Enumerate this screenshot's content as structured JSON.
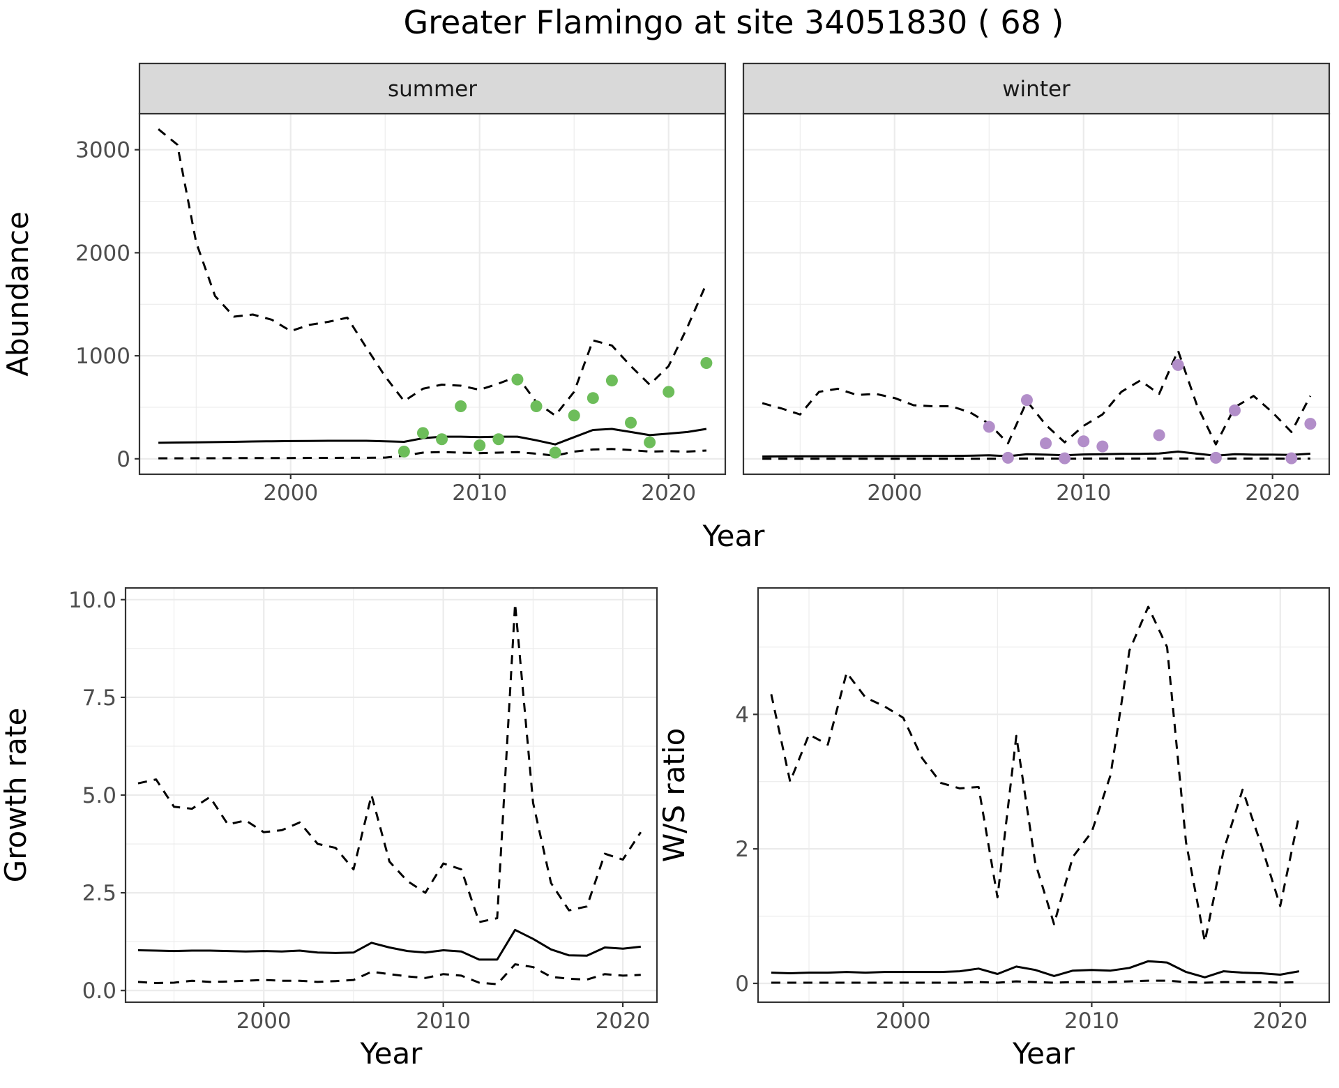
{
  "title": "Greater Flamingo at site 34051830 ( 68 )",
  "colors": {
    "summer_points": "#6dbd5a",
    "winter_points": "#b28ec9",
    "lines": "#000000",
    "strip_fill": "#d9d9d9",
    "grid": "#ebebeb"
  },
  "chart_data": [
    {
      "type": "line",
      "panel": "summer",
      "strip": "summer",
      "xlabel": "Year",
      "ylabel": "Abundance",
      "xlim": [
        1992,
        2023
      ],
      "ylim": [
        -150,
        3350
      ],
      "x_ticks": [
        2000,
        2010,
        2020
      ],
      "y_ticks": [
        0,
        1000,
        2000,
        3000
      ],
      "grid": true,
      "series": [
        {
          "role": "upper",
          "style": "dashed",
          "x": [
            1993,
            1994,
            1995,
            1996,
            1997,
            1998,
            1999,
            2000,
            2001,
            2002,
            2003,
            2004,
            2005,
            2006,
            2007,
            2008,
            2009,
            2010,
            2011,
            2012,
            2013,
            2014,
            2015,
            2016,
            2017,
            2018,
            2019,
            2020,
            2021,
            2022
          ],
          "y": [
            3200,
            3050,
            2100,
            1580,
            1380,
            1400,
            1350,
            1240,
            1300,
            1330,
            1370,
            1080,
            800,
            560,
            680,
            720,
            710,
            670,
            730,
            800,
            550,
            420,
            650,
            1150,
            1100,
            900,
            720,
            900,
            1280,
            1700
          ]
        },
        {
          "role": "central",
          "style": "solid",
          "x": [
            1993,
            1994,
            1995,
            1996,
            1997,
            1998,
            1999,
            2000,
            2001,
            2002,
            2003,
            2004,
            2005,
            2006,
            2007,
            2008,
            2009,
            2010,
            2011,
            2012,
            2013,
            2014,
            2015,
            2016,
            2017,
            2018,
            2019,
            2020,
            2021,
            2022
          ],
          "y": [
            155,
            158,
            160,
            162,
            165,
            168,
            170,
            172,
            173,
            175,
            175,
            175,
            170,
            165,
            200,
            215,
            215,
            210,
            215,
            215,
            180,
            140,
            210,
            280,
            290,
            260,
            230,
            245,
            260,
            290
          ]
        },
        {
          "role": "lower",
          "style": "dashed",
          "x": [
            1993,
            1994,
            1995,
            1996,
            1997,
            1998,
            1999,
            2000,
            2001,
            2002,
            2003,
            2004,
            2005,
            2006,
            2007,
            2008,
            2009,
            2010,
            2011,
            2012,
            2013,
            2014,
            2015,
            2016,
            2017,
            2018,
            2019,
            2020,
            2021,
            2022
          ],
          "y": [
            5,
            5,
            6,
            6,
            7,
            7,
            8,
            8,
            9,
            9,
            10,
            10,
            12,
            30,
            60,
            65,
            60,
            55,
            60,
            65,
            50,
            30,
            70,
            90,
            95,
            85,
            70,
            75,
            70,
            80
          ]
        },
        {
          "role": "observed",
          "style": "points",
          "x": [
            2006,
            2007,
            2008,
            2009,
            2010,
            2011,
            2012,
            2013,
            2014,
            2015,
            2016,
            2017,
            2018,
            2019,
            2020,
            2022
          ],
          "y": [
            70,
            250,
            190,
            510,
            130,
            190,
            770,
            510,
            60,
            420,
            590,
            760,
            350,
            160,
            650,
            930
          ]
        }
      ]
    },
    {
      "type": "line",
      "panel": "winter",
      "strip": "winter",
      "xlabel": "Year",
      "ylabel": "Abundance",
      "xlim": [
        1992,
        2023
      ],
      "ylim": [
        -150,
        3350
      ],
      "x_ticks": [
        2000,
        2010,
        2020
      ],
      "y_ticks": [
        0,
        1000,
        2000,
        3000
      ],
      "grid": true,
      "series": [
        {
          "role": "upper",
          "style": "dashed",
          "x": [
            1993,
            1994,
            1995,
            1996,
            1997,
            1998,
            1999,
            2000,
            2001,
            2002,
            2003,
            2004,
            2005,
            2006,
            2007,
            2008,
            2009,
            2010,
            2011,
            2012,
            2013,
            2014,
            2015,
            2016,
            2017,
            2018,
            2019,
            2020,
            2021,
            2022
          ],
          "y": [
            540,
            490,
            430,
            650,
            680,
            620,
            630,
            590,
            520,
            510,
            510,
            450,
            340,
            150,
            560,
            330,
            160,
            320,
            430,
            650,
            760,
            630,
            1050,
            520,
            140,
            500,
            610,
            450,
            260,
            610
          ]
        },
        {
          "role": "central",
          "style": "solid",
          "x": [
            1993,
            1994,
            1995,
            1996,
            1997,
            1998,
            1999,
            2000,
            2001,
            2002,
            2003,
            2004,
            2005,
            2006,
            2007,
            2008,
            2009,
            2010,
            2011,
            2012,
            2013,
            2014,
            2015,
            2016,
            2017,
            2018,
            2019,
            2020,
            2021,
            2022
          ],
          "y": [
            22,
            23,
            24,
            24,
            25,
            25,
            26,
            26,
            27,
            28,
            28,
            30,
            35,
            25,
            45,
            40,
            35,
            42,
            45,
            48,
            48,
            52,
            70,
            50,
            30,
            45,
            40,
            40,
            38,
            50
          ]
        },
        {
          "role": "lower",
          "style": "dashed",
          "x": [
            1993,
            1994,
            1995,
            1996,
            1997,
            1998,
            1999,
            2000,
            2001,
            2002,
            2003,
            2004,
            2005,
            2006,
            2007,
            2008,
            2009,
            2010,
            2011,
            2012,
            2013,
            2014,
            2015,
            2016,
            2017,
            2018,
            2019,
            2020,
            2021,
            2022
          ],
          "y": [
            0,
            0,
            0,
            0,
            0,
            0,
            0,
            0,
            0,
            0,
            0,
            0,
            1,
            1,
            2,
            2,
            1,
            2,
            2,
            2,
            2,
            2,
            3,
            2,
            1,
            2,
            2,
            2,
            1,
            2
          ]
        },
        {
          "role": "observed",
          "style": "points",
          "x": [
            2005,
            2006,
            2007,
            2008,
            2009,
            2010,
            2011,
            2014,
            2015,
            2017,
            2018,
            2021,
            2022
          ],
          "y": [
            310,
            10,
            570,
            150,
            5,
            170,
            120,
            230,
            910,
            10,
            470,
            5,
            340
          ]
        }
      ]
    },
    {
      "type": "line",
      "panel": "growth",
      "xlabel": "Year",
      "ylabel": "Growth rate",
      "xlim": [
        1992.3,
        2021.9
      ],
      "ylim": [
        -0.3,
        10.3
      ],
      "x_ticks": [
        2000,
        2010,
        2020
      ],
      "y_ticks": [
        0.0,
        2.5,
        5.0,
        7.5,
        10.0
      ],
      "y_tick_labels": [
        "0.0",
        "2.5",
        "5.0",
        "7.5",
        "10.0"
      ],
      "grid": true,
      "series": [
        {
          "role": "upper",
          "style": "dashed",
          "x": [
            1993,
            1994,
            1995,
            1996,
            1997,
            1998,
            1999,
            2000,
            2001,
            2002,
            2003,
            2004,
            2005,
            2006,
            2007,
            2008,
            2009,
            2010,
            2011,
            2012,
            2013,
            2014,
            2015,
            2016,
            2017,
            2018,
            2019,
            2020,
            2021
          ],
          "y": [
            5.3,
            5.4,
            4.7,
            4.65,
            4.95,
            4.25,
            4.35,
            4.05,
            4.1,
            4.3,
            3.75,
            3.65,
            3.1,
            5.0,
            3.3,
            2.8,
            2.5,
            3.25,
            3.1,
            1.75,
            1.85,
            9.9,
            4.8,
            2.75,
            2.05,
            2.15,
            3.5,
            3.35,
            4.05
          ]
        },
        {
          "role": "central",
          "style": "solid",
          "x": [
            1993,
            1994,
            1995,
            1996,
            1997,
            1998,
            1999,
            2000,
            2001,
            2002,
            2003,
            2004,
            2005,
            2006,
            2007,
            2008,
            2009,
            2010,
            2011,
            2012,
            2013,
            2014,
            2015,
            2016,
            2017,
            2018,
            2019,
            2020,
            2021
          ],
          "y": [
            1.03,
            1.02,
            1.01,
            1.02,
            1.02,
            1.01,
            1.0,
            1.01,
            1.0,
            1.02,
            0.97,
            0.96,
            0.97,
            1.22,
            1.1,
            1.01,
            0.97,
            1.03,
            1.0,
            0.79,
            0.79,
            1.55,
            1.32,
            1.05,
            0.9,
            0.89,
            1.1,
            1.07,
            1.12
          ]
        },
        {
          "role": "lower",
          "style": "dashed",
          "x": [
            1993,
            1994,
            1995,
            1996,
            1997,
            1998,
            1999,
            2000,
            2001,
            2002,
            2003,
            2004,
            2005,
            2006,
            2007,
            2008,
            2009,
            2010,
            2011,
            2012,
            2013,
            2014,
            2015,
            2016,
            2017,
            2018,
            2019,
            2020,
            2021
          ],
          "y": [
            0.22,
            0.19,
            0.2,
            0.25,
            0.22,
            0.23,
            0.25,
            0.27,
            0.25,
            0.25,
            0.22,
            0.24,
            0.27,
            0.48,
            0.42,
            0.36,
            0.32,
            0.42,
            0.38,
            0.2,
            0.16,
            0.67,
            0.6,
            0.35,
            0.3,
            0.28,
            0.42,
            0.38,
            0.4
          ]
        }
      ]
    },
    {
      "type": "line",
      "panel": "ws_ratio",
      "xlabel": "Year",
      "ylabel": "W/S ratio",
      "xlim": [
        1992.3,
        2022.6
      ],
      "ylim": [
        -0.28,
        5.88
      ],
      "x_ticks": [
        2000,
        2010,
        2020
      ],
      "y_ticks": [
        0,
        2,
        4
      ],
      "grid": true,
      "series": [
        {
          "role": "upper",
          "style": "dashed",
          "x": [
            1993,
            1994,
            1995,
            1996,
            1997,
            1998,
            1999,
            2000,
            2001,
            2002,
            2003,
            2004,
            2005,
            2006,
            2007,
            2008,
            2009,
            2010,
            2011,
            2012,
            2013,
            2014,
            2015,
            2016,
            2017,
            2018,
            2019,
            2020,
            2021
          ],
          "y": [
            4.3,
            3.0,
            3.7,
            3.55,
            4.62,
            4.25,
            4.12,
            3.95,
            3.35,
            2.98,
            2.9,
            2.92,
            1.28,
            3.68,
            1.8,
            0.88,
            1.88,
            2.25,
            3.1,
            4.95,
            5.6,
            5.0,
            2.1,
            0.62,
            1.98,
            2.88,
            2.05,
            1.15,
            2.5
          ]
        },
        {
          "role": "central",
          "style": "solid",
          "x": [
            1993,
            1994,
            1995,
            1996,
            1997,
            1998,
            1999,
            2000,
            2001,
            2002,
            2003,
            2004,
            2005,
            2006,
            2007,
            2008,
            2009,
            2010,
            2011,
            2012,
            2013,
            2014,
            2015,
            2016,
            2017,
            2018,
            2019,
            2020,
            2021
          ],
          "y": [
            0.16,
            0.15,
            0.16,
            0.16,
            0.17,
            0.16,
            0.17,
            0.17,
            0.17,
            0.17,
            0.18,
            0.22,
            0.14,
            0.25,
            0.2,
            0.11,
            0.19,
            0.2,
            0.19,
            0.23,
            0.33,
            0.31,
            0.17,
            0.09,
            0.18,
            0.16,
            0.15,
            0.13,
            0.18
          ]
        },
        {
          "role": "lower",
          "style": "dashed",
          "x": [
            1993,
            1994,
            1995,
            1996,
            1997,
            1998,
            1999,
            2000,
            2001,
            2002,
            2003,
            2004,
            2005,
            2006,
            2007,
            2008,
            2009,
            2010,
            2011,
            2012,
            2013,
            2014,
            2015,
            2016,
            2017,
            2018,
            2019,
            2020,
            2021
          ],
          "y": [
            0.01,
            0.01,
            0.01,
            0.01,
            0.01,
            0.01,
            0.01,
            0.01,
            0.01,
            0.01,
            0.01,
            0.02,
            0.01,
            0.03,
            0.02,
            0.01,
            0.02,
            0.02,
            0.02,
            0.03,
            0.04,
            0.04,
            0.02,
            0.01,
            0.02,
            0.02,
            0.02,
            0.01,
            0.02
          ]
        }
      ]
    }
  ]
}
